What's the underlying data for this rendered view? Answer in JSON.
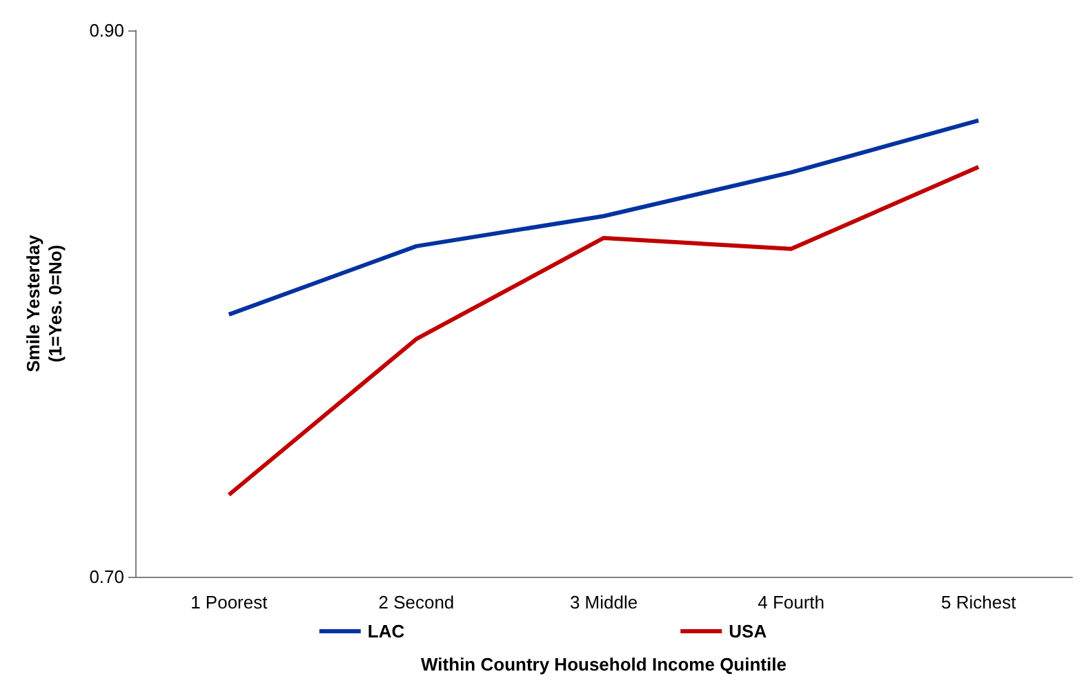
{
  "chart_data": {
    "type": "line",
    "xlabel": "Within Country Household Income Quintile",
    "ylabel": "Smile Yesterday\n(1=Yes. 0=No)",
    "categories": [
      "1 Poorest",
      "2 Second",
      "3 Middle",
      "4 Fourth",
      "5 Richest"
    ],
    "series": [
      {
        "name": "LAC",
        "color": "#0033a0",
        "values": [
          0.796,
          0.821,
          0.832,
          0.848,
          0.867
        ]
      },
      {
        "name": "USA",
        "color": "#c00000",
        "values": [
          0.73,
          0.787,
          0.824,
          0.82,
          0.85
        ]
      }
    ],
    "ylim": [
      0.7,
      0.9
    ],
    "yticks": [
      {
        "value": 0.7,
        "label": "0.70"
      },
      {
        "value": 0.9,
        "label": "0.90"
      }
    ],
    "grid": false,
    "legend": "bottom",
    "marker": "none",
    "line_style": "solid"
  }
}
